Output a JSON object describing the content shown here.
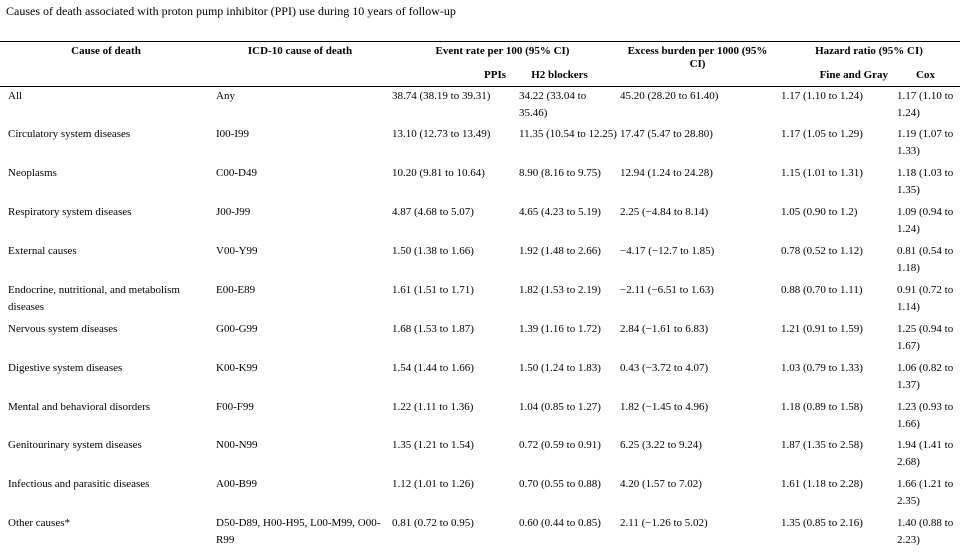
{
  "caption": "Causes of death associated with proton pump inhibitor (PPI) use during 10 years of follow-up",
  "headers": {
    "cause": "Cause of death",
    "icd": "ICD-10 cause of death",
    "event_rate": "Event rate per 100 (95% CI)",
    "excess": "Excess burden per 1000 (95%",
    "excess_ci": "CI)",
    "hazard": "Hazard ratio (95% CI)",
    "ppis": "PPIs",
    "h2": "H2 blockers",
    "fine_gray": "Fine and Gray",
    "cox": "Cox"
  },
  "rows": [
    {
      "cause": "All",
      "icd": "Any",
      "ppi": "38.74 (38.19 to 39.31)",
      "h2": "34.22 (33.04 to 35.46)",
      "excess": "45.20 (28.20 to 61.40)",
      "fg": "1.17 (1.10 to 1.24)",
      "cox": "1.17 (1.10 to 1.24)"
    },
    {
      "cause": "Circulatory system diseases",
      "icd": "I00-I99",
      "ppi": "13.10 (12.73 to 13.49)",
      "h2": "11.35 (10.54 to 12.25)",
      "excess": "17.47 (5.47 to 28.80)",
      "fg": "1.17 (1.05 to 1.29)",
      "cox": "1.19 (1.07 to 1.33)"
    },
    {
      "cause": "Neoplasms",
      "icd": "C00-D49",
      "ppi": "10.20 (9.81 to 10.64)",
      "h2": "8.90 (8.16 to 9.75)",
      "excess": "12.94 (1.24 to 24.28)",
      "fg": "1.15 (1.01 to 1.31)",
      "cox": "1.18 (1.03 to 1.35)"
    },
    {
      "cause": "Respiratory system diseases",
      "icd": "J00-J99",
      "ppi": "4.87 (4.68 to 5.07)",
      "h2": "4.65 (4.23 to 5.19)",
      "excess": "2.25 (−4.84 to 8.14)",
      "fg": "1.05 (0.90 to 1.2)",
      "cox": "1.09 (0.94 to 1.24)"
    },
    {
      "cause": "External causes",
      "icd": "V00-Y99",
      "ppi": "1.50 (1.38 to 1.66)",
      "h2": "1.92 (1.48 to 2.66)",
      "excess": "−4.17 (−12.7 to 1.85)",
      "fg": "0.78 (0.52 to 1.12)",
      "cox": "0.81 (0.54 to 1.18)"
    },
    {
      "cause": "Endocrine, nutritional, and metabolism diseases",
      "icd": "E00-E89",
      "ppi": "1.61 (1.51 to 1.71)",
      "h2": "1.82 (1.53 to 2.19)",
      "excess": "−2.11 (−6.51 to 1.63)",
      "fg": "0.88 (0.70 to 1.11)",
      "cox": "0.91 (0.72 to 1.14)"
    },
    {
      "cause": "Nervous system diseases",
      "icd": "G00-G99",
      "ppi": "1.68 (1.53 to 1.87)",
      "h2": "1.39 (1.16 to 1.72)",
      "excess": "2.84 (−1.61 to 6.83)",
      "fg": "1.21 (0.91 to 1.59)",
      "cox": "1.25 (0.94 to 1.67)"
    },
    {
      "cause": "Digestive system diseases",
      "icd": "K00-K99",
      "ppi": "1.54 (1.44 to 1.66)",
      "h2": "1.50 (1.24 to 1.83)",
      "excess": "0.43 (−3.72 to 4.07)",
      "fg": "1.03 (0.79 to 1.33)",
      "cox": "1.06 (0.82 to 1.37)"
    },
    {
      "cause": "Mental and behavioral disorders",
      "icd": "F00-F99",
      "ppi": "1.22 (1.11 to 1.36)",
      "h2": "1.04 (0.85 to 1.27)",
      "excess": "1.82 (−1.45 to 4.96)",
      "fg": "1.18 (0.89 to 1.58)",
      "cox": "1.23 (0.93 to 1.66)"
    },
    {
      "cause": "Genitourinary system diseases",
      "icd": "N00-N99",
      "ppi": "1.35 (1.21 to 1.54)",
      "h2": "0.72 (0.59 to 0.91)",
      "excess": "6.25 (3.22 to 9.24)",
      "fg": "1.87 (1.35 to 2.58)",
      "cox": "1.94 (1.41 to 2.68)"
    },
    {
      "cause": "Infectious and parasitic diseases",
      "icd": "A00-B99",
      "ppi": "1.12 (1.01 to 1.26)",
      "h2": "0.70 (0.55 to 0.88)",
      "excess": "4.20 (1.57 to 7.02)",
      "fg": "1.61 (1.18 to 2.28)",
      "cox": "1.66 (1.21 to 2.35)"
    },
    {
      "cause": "Other causes*",
      "icd": "D50-D89, H00-H95, L00-M99, O00-R99",
      "ppi": "0.81 (0.72 to 0.95)",
      "h2": "0.60 (0.44 to 0.85)",
      "excess": "2.11 (−1.26 to 5.02)",
      "fg": "1.35 (0.85 to 2.16)",
      "cox": "1.40 (0.88 to 2.23)"
    }
  ]
}
